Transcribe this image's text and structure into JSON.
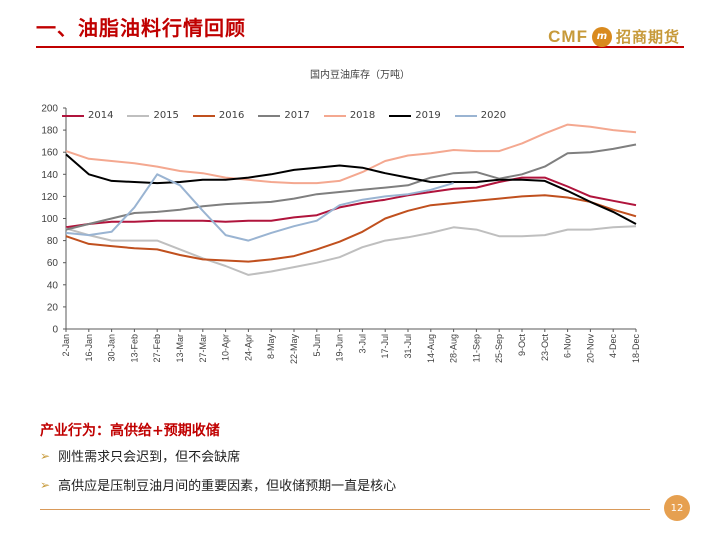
{
  "header": {
    "title": "一、油脂油料行情回顾"
  },
  "logo": {
    "brand": "CMF",
    "badge": "m",
    "cn_name": "招商期货"
  },
  "chart_data": {
    "type": "line",
    "title": "国内豆油库存（万吨）",
    "xlabel": "",
    "ylabel": "",
    "ylim": [
      0,
      200
    ],
    "yticks": [
      0,
      20,
      40,
      60,
      80,
      100,
      120,
      140,
      160,
      180,
      200
    ],
    "grid": false,
    "legend": "top",
    "categories": [
      "2-Jan",
      "16-Jan",
      "30-Jan",
      "13-Feb",
      "27-Feb",
      "13-Mar",
      "27-Mar",
      "10-Apr",
      "24-Apr",
      "8-May",
      "22-May",
      "5-Jun",
      "19-Jun",
      "3-Jul",
      "17-Jul",
      "31-Jul",
      "14-Aug",
      "28-Aug",
      "11-Sep",
      "25-Sep",
      "9-Oct",
      "23-Oct",
      "6-Nov",
      "20-Nov",
      "4-Dec",
      "18-Dec"
    ],
    "series": [
      {
        "name": "2014",
        "color": "#b0143c",
        "values": [
          92,
          95,
          97,
          97,
          98,
          98,
          98,
          97,
          98,
          98,
          101,
          103,
          110,
          114,
          117,
          121,
          124,
          127,
          128,
          133,
          137,
          137,
          129,
          120,
          116,
          112
        ]
      },
      {
        "name": "2015",
        "color": "#bfbfbf",
        "values": [
          91,
          85,
          80,
          80,
          80,
          72,
          64,
          57,
          49,
          52,
          56,
          60,
          65,
          74,
          80,
          83,
          87,
          92,
          90,
          84,
          84,
          85,
          90,
          90,
          92,
          93
        ]
      },
      {
        "name": "2016",
        "color": "#c0501e",
        "values": [
          84,
          77,
          75,
          73,
          72,
          67,
          63,
          62,
          61,
          63,
          66,
          72,
          79,
          88,
          100,
          107,
          112,
          114,
          116,
          118,
          120,
          121,
          119,
          115,
          108,
          102
        ]
      },
      {
        "name": "2017",
        "color": "#7f7f7f",
        "values": [
          90,
          95,
          100,
          105,
          106,
          108,
          111,
          113,
          114,
          115,
          118,
          122,
          124,
          126,
          128,
          130,
          137,
          141,
          142,
          136,
          140,
          147,
          159,
          160,
          163,
          167
        ]
      },
      {
        "name": "2018",
        "color": "#f4a890",
        "values": [
          161,
          154,
          152,
          150,
          147,
          143,
          141,
          137,
          135,
          133,
          132,
          132,
          134,
          142,
          152,
          157,
          159,
          162,
          161,
          161,
          168,
          177,
          185,
          183,
          180,
          178
        ]
      },
      {
        "name": "2019",
        "color": "#000000",
        "values": [
          158,
          140,
          134,
          133,
          132,
          133,
          135,
          135,
          137,
          140,
          144,
          146,
          148,
          146,
          141,
          137,
          133,
          133,
          133,
          135,
          135,
          134,
          125,
          115,
          106,
          95
        ]
      },
      {
        "name": "2020",
        "color": "#9ab4d2",
        "values": [
          87,
          85,
          88,
          110,
          140,
          130,
          107,
          85,
          80,
          87,
          93,
          98,
          112,
          117,
          120,
          122,
          126,
          132,
          null,
          null,
          null,
          null,
          null,
          null,
          null,
          null
        ]
      }
    ]
  },
  "section": {
    "heading": "产业行为：高供给+预期收储",
    "bullets": [
      {
        "icon": "arrow-bullet-icon",
        "text": "刚性需求只会迟到，但不会缺席"
      },
      {
        "icon": "arrow-bullet-icon",
        "text": "高供应是压制豆油月间的重要因素，但收储预期一直是核心"
      }
    ]
  },
  "footer": {
    "page_number": "12"
  }
}
